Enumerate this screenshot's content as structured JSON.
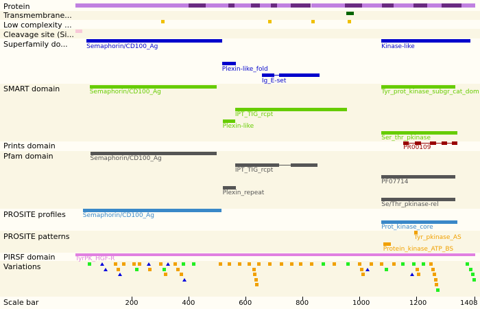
{
  "track_labels": {
    "protein": "Protein",
    "transmembrane": "Transmembrane...",
    "low_complexity": "Low complexity ...",
    "cleavage": "Cleavage site (Si...",
    "superfamily": "Superfamily do...",
    "smart": "SMART domain",
    "prints": "Prints domain",
    "pfam": "Pfam domain",
    "prosite_profiles": "PROSITE profiles",
    "prosite_patterns": "PROSITE patterns",
    "pirsf": "PIRSF domain",
    "variations": "Variations",
    "scale": "Scale bar"
  },
  "scale": {
    "min": 1,
    "max": 1408,
    "ticks": [
      200,
      400,
      600,
      800,
      1000,
      1200
    ],
    "end_label": "1408"
  },
  "colors": {
    "protein_a": "#c080e0",
    "protein_b": "#6a2a80",
    "transmembrane": "#006400",
    "low_complexity": "#f0c000",
    "cleavage": "#f8c8d8",
    "superfamily": "#0000cc",
    "smart": "#66cc00",
    "prints": "#990000",
    "pfam": "#555555",
    "prosite_profiles": "#3a88c8",
    "prosite_patterns": "#f0a000",
    "pirsf": "#e080e0"
  },
  "protein_segments": [
    [
      1,
      400,
      "a"
    ],
    [
      400,
      460,
      "b"
    ],
    [
      460,
      540,
      "a"
    ],
    [
      540,
      560,
      "b"
    ],
    [
      560,
      620,
      "a"
    ],
    [
      620,
      650,
      "b"
    ],
    [
      650,
      690,
      "a"
    ],
    [
      690,
      710,
      "b"
    ],
    [
      710,
      760,
      "a"
    ],
    [
      760,
      830,
      "b"
    ],
    [
      830,
      950,
      "a"
    ],
    [
      950,
      1010,
      "b"
    ],
    [
      1010,
      1080,
      "a"
    ],
    [
      1080,
      1120,
      "b"
    ],
    [
      1120,
      1190,
      "a"
    ],
    [
      1190,
      1240,
      "b"
    ],
    [
      1240,
      1290,
      "a"
    ],
    [
      1290,
      1360,
      "b"
    ],
    [
      1360,
      1408,
      "a"
    ]
  ],
  "transmembrane": [
    [
      955,
      980
    ]
  ],
  "low_complexity": [
    307,
    685,
    836,
    965
  ],
  "cleavage": [
    [
      1,
      24
    ]
  ],
  "superfamily": [
    {
      "label": "Semaphorin/CD100_Ag",
      "start": 40,
      "end": 517,
      "line": 0
    },
    {
      "label": "Kinase-like",
      "start": 1078,
      "end": 1390,
      "line": 0
    },
    {
      "label": "Plexin-like_fold",
      "start": 517,
      "end": 566,
      "line": 1
    },
    {
      "label": "Ig_E-set",
      "start": 657,
      "end": 860,
      "line": 2,
      "gaps": [
        [
          700,
          717
        ]
      ]
    }
  ],
  "smart": [
    {
      "label": "Semaphorin/CD100_Ag",
      "start": 51,
      "end": 498,
      "line": 0,
      "label_below": true
    },
    {
      "label": "Tyr_prot_kinase_subgr_cat_dom",
      "start": 1078,
      "end": 1337,
      "line": 0,
      "label_below": true
    },
    {
      "label": "IPT_TIG_rcpt",
      "start": 563,
      "end": 956,
      "line": 1,
      "label_below": true
    },
    {
      "label": "Plexin-like",
      "start": 519,
      "end": 563,
      "line": 2,
      "label_below": true
    },
    {
      "label": "Ser_thr_pkinase",
      "start": 1078,
      "end": 1345,
      "line": 3,
      "label_below": true
    }
  ],
  "prints": [
    {
      "label": "PR00109",
      "start": 1155,
      "end": 1345,
      "blocks": [
        [
          1155,
          1175
        ],
        [
          1195,
          1218
        ],
        [
          1248,
          1270
        ],
        [
          1290,
          1310
        ],
        [
          1325,
          1345
        ]
      ]
    }
  ],
  "pfam": [
    {
      "label": "Semaphorin/CD100_Ag",
      "start": 53,
      "end": 498,
      "line": 0
    },
    {
      "label": "IPT_TIG_rcpt",
      "start": 563,
      "end": 853,
      "line": 1,
      "gaps": [
        [
          718,
          760
        ]
      ]
    },
    {
      "label": "PF07714",
      "start": 1078,
      "end": 1337,
      "line": 2
    },
    {
      "label": "Plexin_repeat",
      "start": 519,
      "end": 565,
      "line": 3
    },
    {
      "label": "Se/Thr_pkinase-rel",
      "start": 1078,
      "end": 1337,
      "line": 4
    }
  ],
  "prosite_profiles": [
    {
      "label": "Semaphorin/CD100_Ag",
      "start": 27,
      "end": 516,
      "line": 0
    },
    {
      "label": "Prot_kinase_core",
      "start": 1078,
      "end": 1345,
      "line": 1
    }
  ],
  "prosite_patterns": [
    {
      "label": "Tyr_pkinase_AS",
      "start": 1193,
      "end": 1205,
      "line": 0
    },
    {
      "label": "Protein_kinase_ATP_BS",
      "start": 1084,
      "end": 1112,
      "line": 1
    }
  ],
  "pirsf": [
    {
      "label": "TyrPK_HGF-R",
      "start": 1,
      "end": 1408
    }
  ],
  "variations": [
    {
      "pos": 50,
      "row": 0,
      "kind": "g"
    },
    {
      "pos": 95,
      "row": 0,
      "kind": "t"
    },
    {
      "pos": 108,
      "row": 1,
      "kind": "t"
    },
    {
      "pos": 142,
      "row": 0,
      "kind": "o"
    },
    {
      "pos": 150,
      "row": 1,
      "kind": "o"
    },
    {
      "pos": 158,
      "row": 2,
      "kind": "t"
    },
    {
      "pos": 170,
      "row": 0,
      "kind": "o"
    },
    {
      "pos": 205,
      "row": 0,
      "kind": "o"
    },
    {
      "pos": 215,
      "row": 1,
      "kind": "g"
    },
    {
      "pos": 225,
      "row": 0,
      "kind": "o"
    },
    {
      "pos": 260,
      "row": 0,
      "kind": "t"
    },
    {
      "pos": 262,
      "row": 1,
      "kind": "o"
    },
    {
      "pos": 300,
      "row": 0,
      "kind": "o"
    },
    {
      "pos": 312,
      "row": 1,
      "kind": "g"
    },
    {
      "pos": 318,
      "row": 2,
      "kind": "o"
    },
    {
      "pos": 328,
      "row": 0,
      "kind": "t"
    },
    {
      "pos": 352,
      "row": 0,
      "kind": "o"
    },
    {
      "pos": 360,
      "row": 1,
      "kind": "o"
    },
    {
      "pos": 372,
      "row": 2,
      "kind": "o"
    },
    {
      "pos": 380,
      "row": 0,
      "kind": "g"
    },
    {
      "pos": 385,
      "row": 3,
      "kind": "t"
    },
    {
      "pos": 415,
      "row": 0,
      "kind": "g"
    },
    {
      "pos": 510,
      "row": 0,
      "kind": "o"
    },
    {
      "pos": 542,
      "row": 0,
      "kind": "o"
    },
    {
      "pos": 577,
      "row": 0,
      "kind": "o"
    },
    {
      "pos": 612,
      "row": 0,
      "kind": "o"
    },
    {
      "pos": 628,
      "row": 1,
      "kind": "o"
    },
    {
      "pos": 632,
      "row": 2,
      "kind": "o"
    },
    {
      "pos": 635,
      "row": 3,
      "kind": "o"
    },
    {
      "pos": 637,
      "row": 4,
      "kind": "o"
    },
    {
      "pos": 645,
      "row": 0,
      "kind": "o"
    },
    {
      "pos": 685,
      "row": 0,
      "kind": "o"
    },
    {
      "pos": 725,
      "row": 0,
      "kind": "o"
    },
    {
      "pos": 762,
      "row": 0,
      "kind": "o"
    },
    {
      "pos": 793,
      "row": 0,
      "kind": "o"
    },
    {
      "pos": 830,
      "row": 0,
      "kind": "o"
    },
    {
      "pos": 873,
      "row": 0,
      "kind": "g"
    },
    {
      "pos": 912,
      "row": 0,
      "kind": "o"
    },
    {
      "pos": 958,
      "row": 0,
      "kind": "g"
    },
    {
      "pos": 1000,
      "row": 0,
      "kind": "o"
    },
    {
      "pos": 1008,
      "row": 1,
      "kind": "o"
    },
    {
      "pos": 1012,
      "row": 2,
      "kind": "o"
    },
    {
      "pos": 1030,
      "row": 1,
      "kind": "t"
    },
    {
      "pos": 1042,
      "row": 0,
      "kind": "o"
    },
    {
      "pos": 1078,
      "row": 0,
      "kind": "o"
    },
    {
      "pos": 1095,
      "row": 1,
      "kind": "g"
    },
    {
      "pos": 1120,
      "row": 0,
      "kind": "o"
    },
    {
      "pos": 1152,
      "row": 0,
      "kind": "g"
    },
    {
      "pos": 1185,
      "row": 2,
      "kind": "t"
    },
    {
      "pos": 1190,
      "row": 0,
      "kind": "g"
    },
    {
      "pos": 1203,
      "row": 1,
      "kind": "o"
    },
    {
      "pos": 1208,
      "row": 2,
      "kind": "o"
    },
    {
      "pos": 1225,
      "row": 0,
      "kind": "g"
    },
    {
      "pos": 1250,
      "row": 0,
      "kind": "o"
    },
    {
      "pos": 1258,
      "row": 1,
      "kind": "o"
    },
    {
      "pos": 1263,
      "row": 2,
      "kind": "o"
    },
    {
      "pos": 1267,
      "row": 3,
      "kind": "o"
    },
    {
      "pos": 1270,
      "row": 4,
      "kind": "o"
    },
    {
      "pos": 1275,
      "row": 5,
      "kind": "g"
    },
    {
      "pos": 1380,
      "row": 0,
      "kind": "g"
    },
    {
      "pos": 1390,
      "row": 1,
      "kind": "g"
    },
    {
      "pos": 1398,
      "row": 2,
      "kind": "g"
    },
    {
      "pos": 1404,
      "row": 3,
      "kind": "g"
    }
  ],
  "variation_colors": {
    "g": "#22ee22",
    "o": "#f0a000",
    "t": "#0000dd"
  }
}
